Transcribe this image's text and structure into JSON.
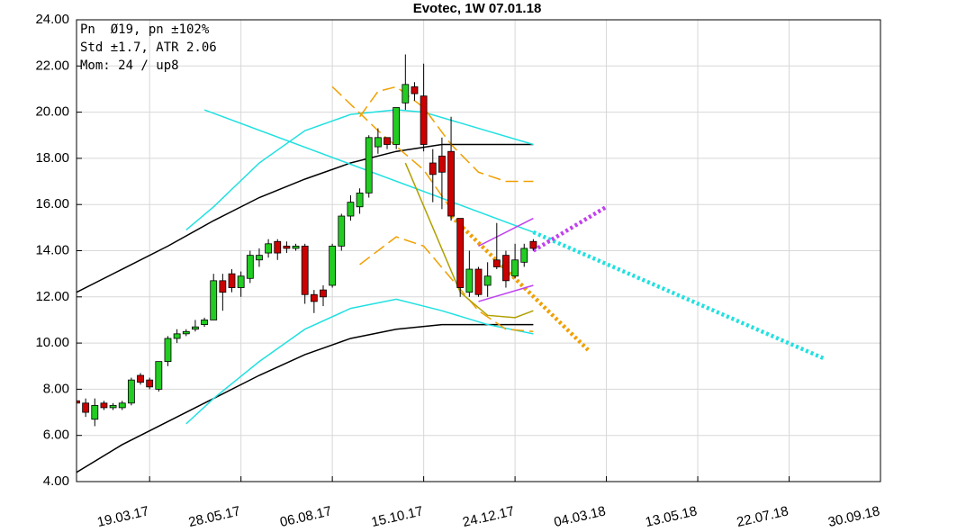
{
  "chart_data": {
    "type": "candlestick",
    "title": "Evotec, 1W 07.01.18",
    "annotations": [
      "Pn  Ø19, pn ±102%",
      "Std ±1.7, ATR 2.06",
      "Mom: 24 / up8"
    ],
    "grid": true,
    "up_color": "#22cc22",
    "down_color": "#cc0000",
    "xlim": [
      "22.01.17",
      "30.09.18"
    ],
    "xticks": [
      "19.03.17",
      "28.05.17",
      "06.08.17",
      "15.10.17",
      "24.12.17",
      "04.03.18",
      "13.05.18",
      "22.07.18",
      "30.09.18"
    ],
    "ylim": [
      4,
      24
    ],
    "yticks": [
      {
        "value": 4,
        "label": "4.00"
      },
      {
        "value": 6,
        "label": "6.00"
      },
      {
        "value": 8,
        "label": "8.00"
      },
      {
        "value": 10,
        "label": "10.00"
      },
      {
        "value": 12,
        "label": "12.00"
      },
      {
        "value": 14,
        "label": "14.00"
      },
      {
        "value": 16,
        "label": "16.00"
      },
      {
        "value": 18,
        "label": "18.00"
      },
      {
        "value": 20,
        "label": "20.00"
      },
      {
        "value": 22,
        "label": "22.00"
      },
      {
        "value": 24,
        "label": "24.00"
      }
    ],
    "candles": {
      "x": [
        "22.01.17",
        "29.01.17",
        "05.02.17",
        "12.02.17",
        "19.02.17",
        "26.02.17",
        "05.03.17",
        "12.03.17",
        "19.03.17",
        "26.03.17",
        "02.04.17",
        "09.04.17",
        "16.04.17",
        "23.04.17",
        "30.04.17",
        "07.05.17",
        "14.05.17",
        "21.05.17",
        "28.05.17",
        "04.06.17",
        "11.06.17",
        "18.06.17",
        "25.06.17",
        "02.07.17",
        "09.07.17",
        "16.07.17",
        "23.07.17",
        "30.07.17",
        "06.08.17",
        "13.08.17",
        "20.08.17",
        "27.08.17",
        "03.09.17",
        "10.09.17",
        "17.09.17",
        "24.09.17",
        "01.10.17",
        "08.10.17",
        "15.10.17",
        "22.10.17",
        "29.10.17",
        "05.11.17",
        "12.11.17",
        "19.11.17",
        "26.11.17",
        "03.12.17",
        "10.12.17",
        "17.12.17",
        "24.12.17",
        "31.12.17",
        "07.01.18"
      ],
      "open": [
        7.5,
        7.4,
        6.7,
        7.4,
        7.2,
        7.2,
        7.4,
        8.6,
        8.4,
        8.0,
        9.2,
        10.2,
        10.4,
        10.6,
        10.8,
        11.0,
        12.7,
        13.0,
        12.4,
        12.8,
        13.6,
        13.9,
        14.4,
        14.2,
        14.1,
        14.2,
        12.1,
        12.3,
        12.5,
        14.2,
        15.5,
        15.9,
        16.5,
        18.5,
        18.9,
        18.6,
        20.4,
        21.1,
        20.7,
        17.8,
        18.1,
        18.3,
        15.4,
        12.2,
        13.2,
        12.5,
        13.6,
        13.8,
        12.9,
        13.5,
        14.4
      ],
      "high": [
        7.6,
        7.6,
        7.6,
        7.5,
        7.4,
        7.5,
        8.5,
        8.7,
        8.5,
        9.2,
        10.3,
        10.6,
        10.6,
        11.0,
        11.1,
        13.0,
        13.0,
        13.2,
        13.1,
        14.0,
        14.1,
        14.5,
        14.5,
        14.4,
        14.3,
        14.3,
        12.3,
        12.5,
        14.3,
        15.6,
        16.4,
        16.7,
        19.0,
        19.3,
        18.9,
        20.2,
        22.5,
        21.3,
        22.1,
        18.4,
        18.9,
        19.8,
        15.4,
        14.0,
        13.3,
        13.5,
        15.2,
        14.0,
        14.3,
        14.3,
        14.5
      ],
      "low": [
        7.2,
        6.8,
        6.4,
        7.1,
        7.1,
        7.1,
        7.3,
        8.2,
        8.0,
        7.9,
        9.0,
        10.0,
        10.3,
        10.5,
        10.7,
        11.0,
        11.4,
        12.2,
        12.0,
        12.6,
        13.3,
        13.7,
        13.6,
        13.9,
        14.0,
        11.7,
        11.3,
        11.6,
        12.4,
        14.0,
        15.3,
        15.6,
        16.3,
        18.2,
        18.4,
        18.4,
        20.1,
        20.5,
        18.3,
        16.1,
        15.8,
        15.3,
        12.0,
        12.0,
        12.0,
        12.0,
        13.2,
        12.4,
        12.8,
        13.3,
        14.0
      ],
      "close": [
        7.4,
        7.0,
        7.3,
        7.2,
        7.3,
        7.4,
        8.4,
        8.3,
        8.1,
        9.2,
        10.2,
        10.4,
        10.5,
        10.7,
        11.0,
        12.7,
        12.2,
        12.4,
        12.9,
        13.8,
        13.8,
        14.3,
        13.9,
        14.1,
        14.2,
        12.1,
        11.8,
        12.0,
        14.2,
        15.5,
        16.1,
        16.5,
        18.9,
        18.9,
        18.6,
        20.2,
        21.2,
        20.8,
        18.6,
        17.3,
        17.4,
        15.5,
        12.4,
        13.2,
        12.1,
        12.9,
        13.3,
        12.7,
        13.6,
        14.1,
        14.1
      ]
    },
    "series": [
      {
        "color": "#000000",
        "style": "solid",
        "x": [
          "22.01.17",
          "26.02.17",
          "02.04.17",
          "07.05.17",
          "11.06.17",
          "16.07.17",
          "20.08.17",
          "24.09.17",
          "29.10.17",
          "03.12.17",
          "07.01.18"
        ],
        "values": [
          12.2,
          13.2,
          14.2,
          15.3,
          16.3,
          17.1,
          17.8,
          18.3,
          18.6,
          18.6,
          18.6
        ]
      },
      {
        "color": "#000000",
        "style": "solid",
        "x": [
          "22.01.17",
          "26.02.17",
          "02.04.17",
          "07.05.17",
          "11.06.17",
          "16.07.17",
          "20.08.17",
          "24.09.17",
          "29.10.17",
          "03.12.17",
          "07.01.18"
        ],
        "values": [
          4.4,
          5.6,
          6.6,
          7.6,
          8.6,
          9.5,
          10.2,
          10.6,
          10.8,
          10.8,
          10.8
        ]
      },
      {
        "color": "#22e0e0",
        "style": "solid",
        "x": [
          "16.04.17",
          "07.05.17",
          "11.06.17",
          "16.07.17",
          "20.08.17",
          "24.09.17",
          "15.10.17",
          "07.01.18"
        ],
        "values": [
          14.9,
          15.9,
          17.8,
          19.2,
          19.9,
          20.1,
          20.0,
          18.6
        ]
      },
      {
        "color": "#22e0e0",
        "style": "solid",
        "x": [
          "16.04.17",
          "07.05.17",
          "11.06.17",
          "16.07.17",
          "20.08.17",
          "24.09.17",
          "29.10.17",
          "03.12.17",
          "07.01.18"
        ],
        "values": [
          6.5,
          7.6,
          9.2,
          10.6,
          11.5,
          11.9,
          11.4,
          10.8,
          10.4
        ]
      },
      {
        "color": "#22e0e0",
        "style": "solid",
        "x": [
          "30.04.17",
          "07.01.18"
        ],
        "values": [
          20.1,
          14.8
        ]
      },
      {
        "color": "#22e0e0",
        "style": "dotted",
        "x": [
          "07.01.18",
          "19.08.18"
        ],
        "values": [
          14.8,
          9.3
        ]
      },
      {
        "color": "#f0a000",
        "style": "dashed",
        "x": [
          "06.08.17",
          "10.09.17",
          "15.10.17",
          "05.11.17"
        ],
        "values": [
          21.1,
          19.2,
          17.5,
          15.8
        ]
      },
      {
        "color": "#f0a000",
        "style": "dashed",
        "x": [
          "27.08.17",
          "10.09.17",
          "24.09.17",
          "15.10.17",
          "05.11.17",
          "26.11.17",
          "17.12.17",
          "07.01.18"
        ],
        "values": [
          19.8,
          20.9,
          21.1,
          20.2,
          18.6,
          17.4,
          17.0,
          17.0
        ]
      },
      {
        "color": "#f0a000",
        "style": "dashed",
        "x": [
          "27.08.17",
          "24.09.17",
          "15.10.17",
          "05.11.17",
          "26.11.17",
          "17.12.17",
          "07.01.18"
        ],
        "values": [
          13.4,
          14.6,
          14.2,
          12.8,
          11.4,
          10.6,
          10.5
        ]
      },
      {
        "color": "#f0a000",
        "style": "dotted",
        "x": [
          "05.11.17",
          "18.02.18"
        ],
        "values": [
          15.5,
          9.7
        ]
      },
      {
        "color": "#b0a000",
        "style": "solid",
        "x": [
          "01.10.17",
          "22.10.17",
          "12.11.17",
          "03.12.17",
          "24.12.17",
          "07.01.18"
        ],
        "values": [
          17.8,
          15.0,
          12.2,
          11.2,
          11.1,
          11.4
        ]
      },
      {
        "color": "#c040f0",
        "style": "solid",
        "x": [
          "26.11.17",
          "07.01.18"
        ],
        "values": [
          14.2,
          15.4
        ]
      },
      {
        "color": "#c040f0",
        "style": "solid",
        "x": [
          "26.11.17",
          "07.01.18"
        ],
        "values": [
          11.8,
          12.5
        ]
      },
      {
        "color": "#c040f0",
        "style": "dotted",
        "x": [
          "07.01.18",
          "04.03.18"
        ],
        "values": [
          14.0,
          15.9
        ]
      }
    ]
  }
}
